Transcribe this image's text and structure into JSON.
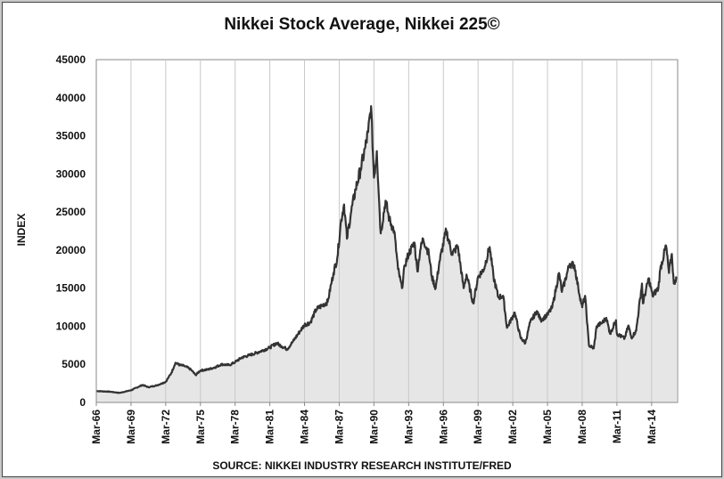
{
  "chart_data": {
    "type": "area",
    "title": "Nikkei Stock Average, Nikkei 225©",
    "ylabel": "INDEX",
    "xlabel": "",
    "source": "SOURCE: NIKKEI INDUSTRY RESEARCH INSTITUTE/FRED",
    "ylim": [
      0,
      45000
    ],
    "yticks": [
      0,
      5000,
      10000,
      15000,
      20000,
      25000,
      30000,
      35000,
      40000,
      45000
    ],
    "xlim": [
      "1966-03",
      "2016-06"
    ],
    "xticks": [
      "Mar-66",
      "Mar-69",
      "Mar-72",
      "Mar-75",
      "Mar-78",
      "Mar-81",
      "Mar-84",
      "Mar-87",
      "Mar-90",
      "Mar-93",
      "Mar-96",
      "Mar-99",
      "Mar-02",
      "Mar-05",
      "Mar-08",
      "Mar-11",
      "Mar-14"
    ],
    "grid": "vertical",
    "series": [
      {
        "line_color": "#333333",
        "fill_color": "#e6e6e6",
        "points": [
          [
            "1966-03",
            1500
          ],
          [
            "1967-06",
            1400
          ],
          [
            "1968-03",
            1250
          ],
          [
            "1969-03",
            1600
          ],
          [
            "1970-03",
            2300
          ],
          [
            "1970-09",
            2000
          ],
          [
            "1971-06",
            2250
          ],
          [
            "1972-03",
            2700
          ],
          [
            "1972-09",
            3900
          ],
          [
            "1973-01",
            5200
          ],
          [
            "1973-06",
            4900
          ],
          [
            "1973-10",
            4800
          ],
          [
            "1974-03",
            4500
          ],
          [
            "1974-06",
            4200
          ],
          [
            "1974-10",
            3600
          ],
          [
            "1975-03",
            4200
          ],
          [
            "1975-10",
            4300
          ],
          [
            "1976-06",
            4600
          ],
          [
            "1977-01",
            5000
          ],
          [
            "1977-09",
            4900
          ],
          [
            "1978-03",
            5300
          ],
          [
            "1978-10",
            5900
          ],
          [
            "1979-06",
            6200
          ],
          [
            "1980-03",
            6600
          ],
          [
            "1981-03",
            7200
          ],
          [
            "1981-10",
            7800
          ],
          [
            "1982-03",
            7400
          ],
          [
            "1982-09",
            7000
          ],
          [
            "1983-03",
            8000
          ],
          [
            "1983-10",
            9300
          ],
          [
            "1984-03",
            10200
          ],
          [
            "1984-09",
            10500
          ],
          [
            "1985-03",
            12200
          ],
          [
            "1985-10",
            12800
          ],
          [
            "1986-03",
            13200
          ],
          [
            "1986-09",
            17000
          ],
          [
            "1987-01",
            19000
          ],
          [
            "1987-05",
            24000
          ],
          [
            "1987-08",
            26000
          ],
          [
            "1987-11",
            21500
          ],
          [
            "1988-03",
            24800
          ],
          [
            "1988-08",
            28000
          ],
          [
            "1989-01",
            30500
          ],
          [
            "1989-06",
            33500
          ],
          [
            "1989-09",
            35500
          ],
          [
            "1989-12",
            38900
          ],
          [
            "1990-03",
            29500
          ],
          [
            "1990-06",
            33000
          ],
          [
            "1990-10",
            22200
          ],
          [
            "1991-03",
            26500
          ],
          [
            "1991-07",
            24000
          ],
          [
            "1991-12",
            22500
          ],
          [
            "1992-04",
            17500
          ],
          [
            "1992-08",
            15000
          ],
          [
            "1992-11",
            18000
          ],
          [
            "1993-03",
            19500
          ],
          [
            "1993-09",
            21000
          ],
          [
            "1993-12",
            17200
          ],
          [
            "1994-03",
            20000
          ],
          [
            "1994-06",
            21500
          ],
          [
            "1994-12",
            19500
          ],
          [
            "1995-03",
            16500
          ],
          [
            "1995-07",
            15000
          ],
          [
            "1995-11",
            18500
          ],
          [
            "1996-06",
            22600
          ],
          [
            "1996-12",
            19500
          ],
          [
            "1997-06",
            20500
          ],
          [
            "1997-12",
            15000
          ],
          [
            "1998-03",
            16800
          ],
          [
            "1998-10",
            13000
          ],
          [
            "1999-03",
            16500
          ],
          [
            "1999-09",
            17500
          ],
          [
            "2000-03",
            20400
          ],
          [
            "2000-07",
            16500
          ],
          [
            "2000-12",
            13800
          ],
          [
            "2001-05",
            14000
          ],
          [
            "2001-09",
            9800
          ],
          [
            "2002-05",
            11800
          ],
          [
            "2002-11",
            8500
          ],
          [
            "2003-04",
            7800
          ],
          [
            "2003-09",
            10500
          ],
          [
            "2004-04",
            12000
          ],
          [
            "2004-08",
            10800
          ],
          [
            "2005-03",
            11500
          ],
          [
            "2005-08",
            12500
          ],
          [
            "2006-03",
            17000
          ],
          [
            "2006-06",
            14500
          ],
          [
            "2007-02",
            18200
          ],
          [
            "2007-07",
            18000
          ],
          [
            "2007-11",
            15000
          ],
          [
            "2008-03",
            12500
          ],
          [
            "2008-06",
            14000
          ],
          [
            "2008-10",
            7500
          ],
          [
            "2009-03",
            7100
          ],
          [
            "2009-06",
            10000
          ],
          [
            "2009-12",
            10500
          ],
          [
            "2010-04",
            11100
          ],
          [
            "2010-08",
            9000
          ],
          [
            "2011-02",
            10800
          ],
          [
            "2011-03",
            9000
          ],
          [
            "2011-11",
            8400
          ],
          [
            "2012-03",
            10100
          ],
          [
            "2012-06",
            8500
          ],
          [
            "2012-11",
            9400
          ],
          [
            "2013-05",
            15600
          ],
          [
            "2013-06",
            13000
          ],
          [
            "2013-12",
            16300
          ],
          [
            "2014-04",
            14000
          ],
          [
            "2014-10",
            15000
          ],
          [
            "2014-12",
            17500
          ],
          [
            "2015-06",
            20600
          ],
          [
            "2015-09",
            17000
          ],
          [
            "2015-12",
            19500
          ],
          [
            "2016-02",
            15600
          ],
          [
            "2016-05",
            16500
          ]
        ]
      }
    ]
  }
}
